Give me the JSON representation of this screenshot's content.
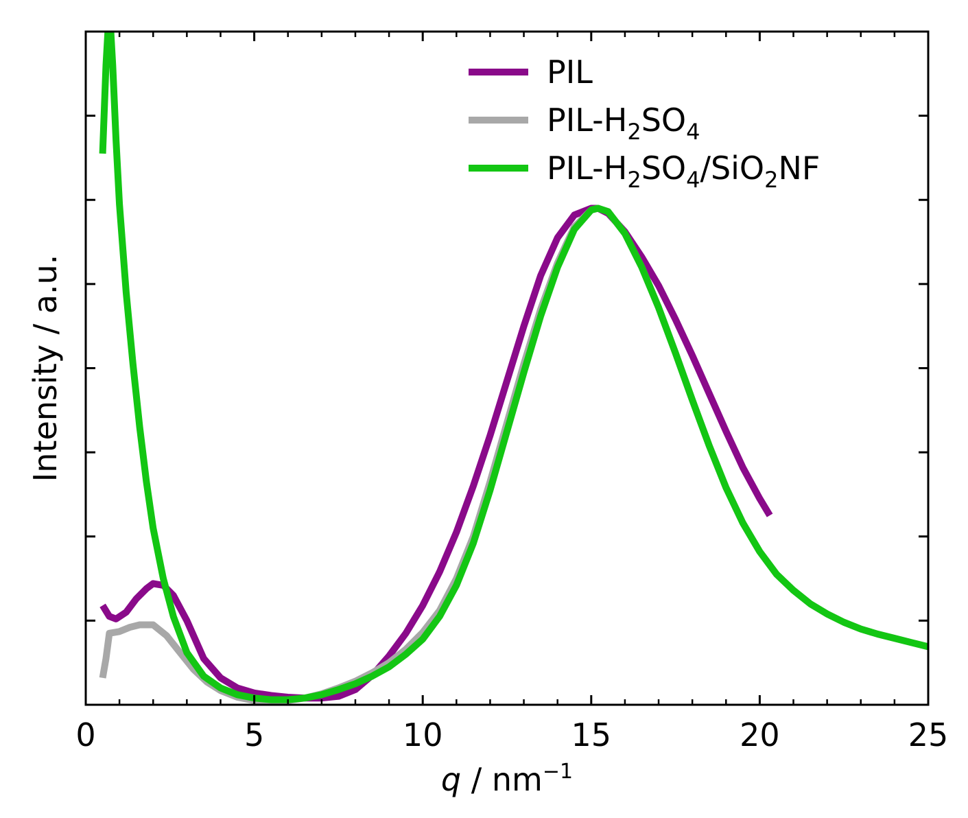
{
  "chart_data": {
    "type": "line",
    "title": "",
    "xlabel": {
      "var": "q",
      "rest": " / nm",
      "sup": "−1"
    },
    "ylabel": "Intensity / a.u.",
    "xlim": [
      0,
      25
    ],
    "ylim": [
      0,
      8
    ],
    "x_ticks": [
      0,
      5,
      10,
      15,
      20,
      25
    ],
    "x_tick_labels": [
      "0",
      "5",
      "10",
      "15",
      "20",
      "25"
    ],
    "x_minor_step": 1,
    "y_ticks": [
      1,
      2,
      3,
      4,
      5,
      6,
      7
    ],
    "y_tick_labels": [],
    "grid": false,
    "legend_position": "top-right",
    "series": [
      {
        "name": "PIL",
        "legend": [
          {
            "t": "PIL",
            "s": "n"
          }
        ],
        "color": "#8a0a8a",
        "x": [
          0.5,
          0.7,
          0.9,
          1.2,
          1.5,
          1.8,
          2.0,
          2.3,
          2.6,
          3.0,
          3.5,
          4.0,
          4.5,
          5.0,
          5.5,
          6.0,
          6.5,
          7.0,
          7.5,
          8.0,
          8.5,
          9.0,
          9.5,
          10.0,
          10.5,
          11.0,
          11.5,
          12.0,
          12.5,
          13.0,
          13.5,
          14.0,
          14.5,
          15.0,
          15.2,
          15.5,
          16.0,
          16.5,
          17.0,
          17.5,
          18.0,
          18.5,
          19.0,
          19.5,
          20.0,
          20.3
        ],
        "y": [
          1.18,
          1.05,
          1.02,
          1.1,
          1.26,
          1.38,
          1.44,
          1.42,
          1.3,
          1.0,
          0.55,
          0.32,
          0.2,
          0.14,
          0.11,
          0.09,
          0.08,
          0.08,
          0.1,
          0.18,
          0.35,
          0.58,
          0.85,
          1.18,
          1.58,
          2.05,
          2.6,
          3.2,
          3.85,
          4.5,
          5.1,
          5.55,
          5.82,
          5.9,
          5.9,
          5.84,
          5.62,
          5.32,
          4.98,
          4.58,
          4.15,
          3.7,
          3.25,
          2.82,
          2.45,
          2.25
        ]
      },
      {
        "name": "PIL-H2SO4",
        "legend": [
          {
            "t": "PIL-H",
            "s": "n"
          },
          {
            "t": "2",
            "s": "sub"
          },
          {
            "t": "SO",
            "s": "n"
          },
          {
            "t": "4",
            "s": "sub"
          }
        ],
        "color": "#a8a8a8",
        "x": [
          0.5,
          0.6,
          0.7,
          1.0,
          1.3,
          1.6,
          2.0,
          2.4,
          2.8,
          3.2,
          3.6,
          4.0,
          4.5,
          5.0,
          5.5,
          6.0,
          6.5,
          7.0,
          7.5,
          8.0,
          8.5,
          9.0,
          9.5,
          10.0,
          10.5,
          11.0,
          11.5,
          12.0,
          12.5,
          13.0,
          13.5,
          14.0,
          14.5,
          15.0,
          15.2,
          15.5,
          16.0,
          16.5,
          17.0,
          17.5,
          18.0,
          18.5,
          19.0,
          19.5,
          20.0,
          20.5,
          21.0,
          21.5,
          22.0,
          22.5,
          23.0,
          23.5,
          24.0,
          24.5,
          25.0
        ],
        "y": [
          0.32,
          0.55,
          0.85,
          0.87,
          0.92,
          0.95,
          0.95,
          0.82,
          0.62,
          0.42,
          0.27,
          0.17,
          0.09,
          0.05,
          0.04,
          0.05,
          0.08,
          0.13,
          0.2,
          0.28,
          0.38,
          0.5,
          0.66,
          0.86,
          1.12,
          1.5,
          2.0,
          2.65,
          3.35,
          4.05,
          4.7,
          5.25,
          5.68,
          5.88,
          5.9,
          5.86,
          5.6,
          5.2,
          4.72,
          4.18,
          3.62,
          3.08,
          2.58,
          2.16,
          1.82,
          1.55,
          1.36,
          1.2,
          1.08,
          0.98,
          0.9,
          0.84,
          0.79,
          0.74,
          0.69
        ]
      },
      {
        "name": "PIL-H2SO4/SiO2NF",
        "legend": [
          {
            "t": "PIL-H",
            "s": "n"
          },
          {
            "t": "2",
            "s": "sub"
          },
          {
            "t": "SO",
            "s": "n"
          },
          {
            "t": "4",
            "s": "sub"
          },
          {
            "t": "/SiO",
            "s": "n"
          },
          {
            "t": "2",
            "s": "sub"
          },
          {
            "t": "NF",
            "s": "n"
          }
        ],
        "color": "#13c613",
        "x": [
          0.5,
          0.6,
          0.7,
          0.8,
          0.9,
          1.0,
          1.2,
          1.4,
          1.6,
          1.8,
          2.0,
          2.3,
          2.6,
          3.0,
          3.5,
          4.0,
          4.5,
          5.0,
          5.5,
          6.0,
          6.5,
          7.0,
          7.5,
          8.0,
          8.5,
          9.0,
          9.5,
          10.0,
          10.5,
          11.0,
          11.5,
          12.0,
          12.5,
          13.0,
          13.5,
          14.0,
          14.5,
          15.0,
          15.2,
          15.5,
          16.0,
          16.5,
          17.0,
          17.5,
          18.0,
          18.5,
          19.0,
          19.5,
          20.0,
          20.5,
          21.0,
          21.5,
          22.0,
          22.5,
          23.0,
          23.5,
          24.0,
          24.5,
          25.0
        ],
        "y": [
          6.55,
          7.6,
          8.3,
          7.6,
          6.7,
          5.95,
          4.9,
          4.05,
          3.3,
          2.65,
          2.1,
          1.5,
          1.05,
          0.62,
          0.34,
          0.2,
          0.12,
          0.08,
          0.06,
          0.06,
          0.08,
          0.12,
          0.18,
          0.25,
          0.34,
          0.45,
          0.6,
          0.78,
          1.05,
          1.42,
          1.92,
          2.55,
          3.25,
          3.95,
          4.62,
          5.2,
          5.65,
          5.88,
          5.9,
          5.86,
          5.6,
          5.2,
          4.72,
          4.18,
          3.62,
          3.08,
          2.58,
          2.16,
          1.82,
          1.55,
          1.36,
          1.2,
          1.08,
          0.98,
          0.9,
          0.84,
          0.79,
          0.74,
          0.69
        ]
      }
    ]
  }
}
